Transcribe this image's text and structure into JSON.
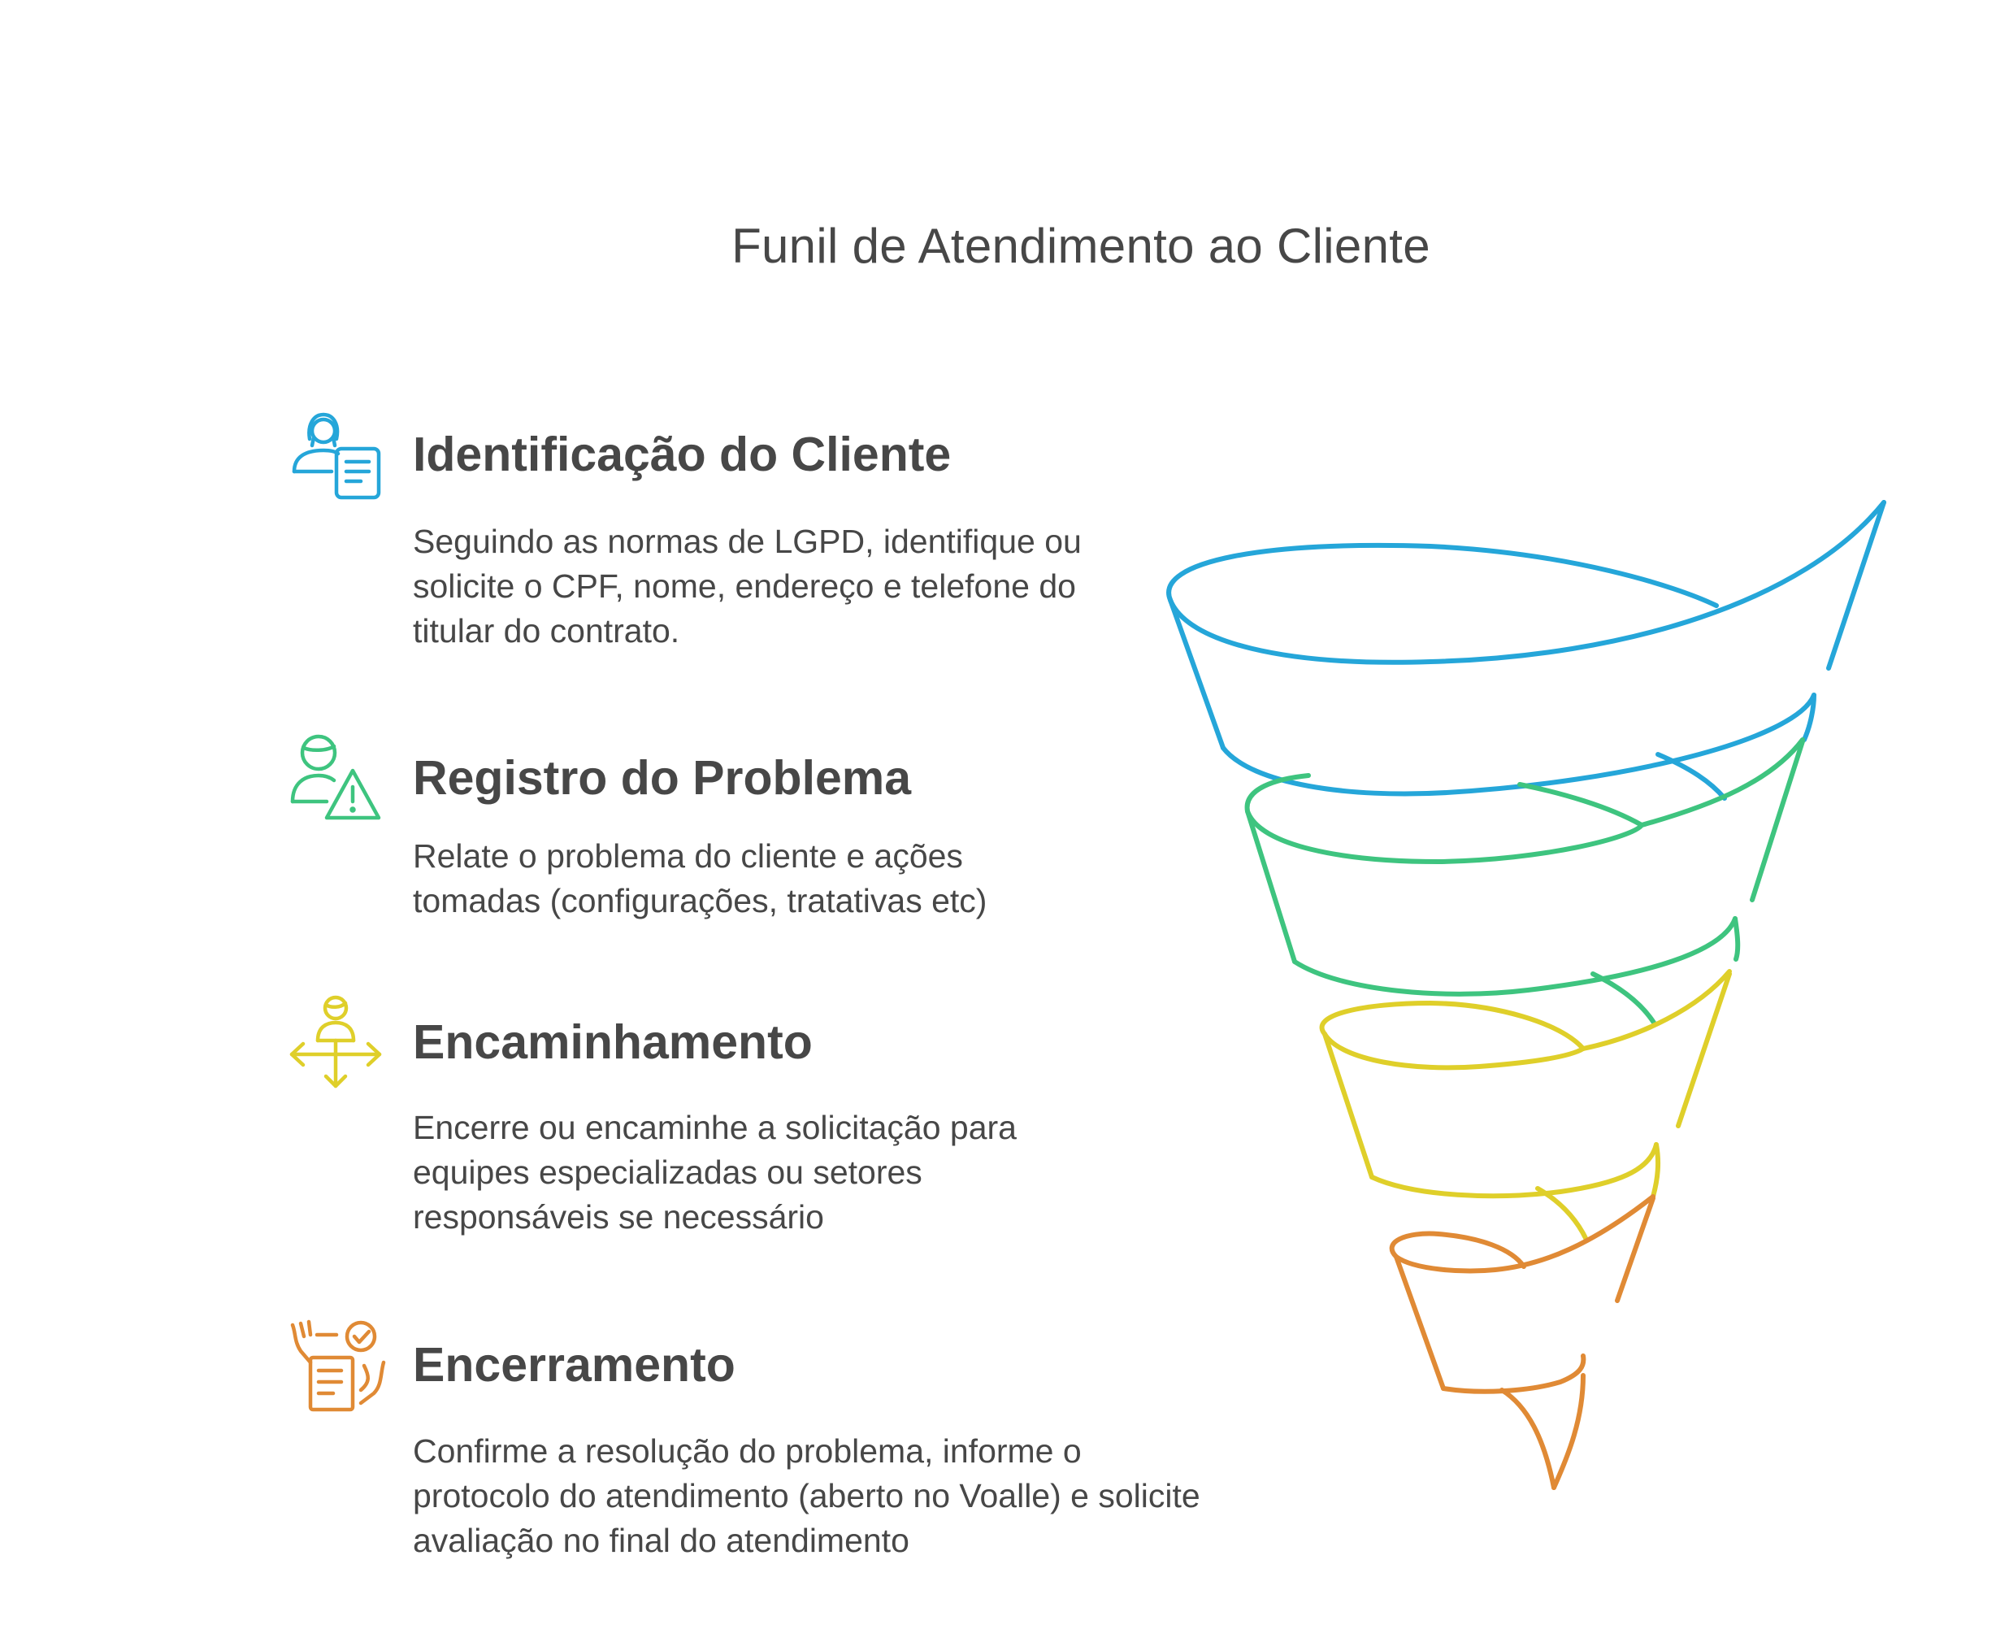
{
  "title": "Funil de Atendimento ao Cliente",
  "colors": {
    "blue": "#25A6D9",
    "green": "#3EC47F",
    "yellow": "#DFCF2A",
    "orange": "#E08A35",
    "text": "#474747"
  },
  "steps": [
    {
      "heading": "Identificação do Cliente",
      "description": "Seguindo as normas de LGPD, identifique ou solicite o CPF, nome, endereço e telefone do titular do contrato.",
      "icon": "customer-id-icon",
      "color": "#25A6D9"
    },
    {
      "heading": "Registro do Problema",
      "description": "Relate o problema do cliente e ações tomadas (configurações, tratativas etc)",
      "icon": "user-warning-icon",
      "color": "#3EC47F"
    },
    {
      "heading": "Encaminhamento",
      "description": "Encerre ou encaminhe a solicitação para equipes especializadas ou setores responsáveis se necessário",
      "icon": "person-directions-icon",
      "color": "#DFCF2A"
    },
    {
      "heading": "Encerramento",
      "description": "Confirme a resolução do problema, informe o protocolo do atendimento (aberto no Voalle) e solicite avaliação no final do atendimento",
      "icon": "checklist-hands-icon",
      "color": "#E08A35"
    }
  ]
}
